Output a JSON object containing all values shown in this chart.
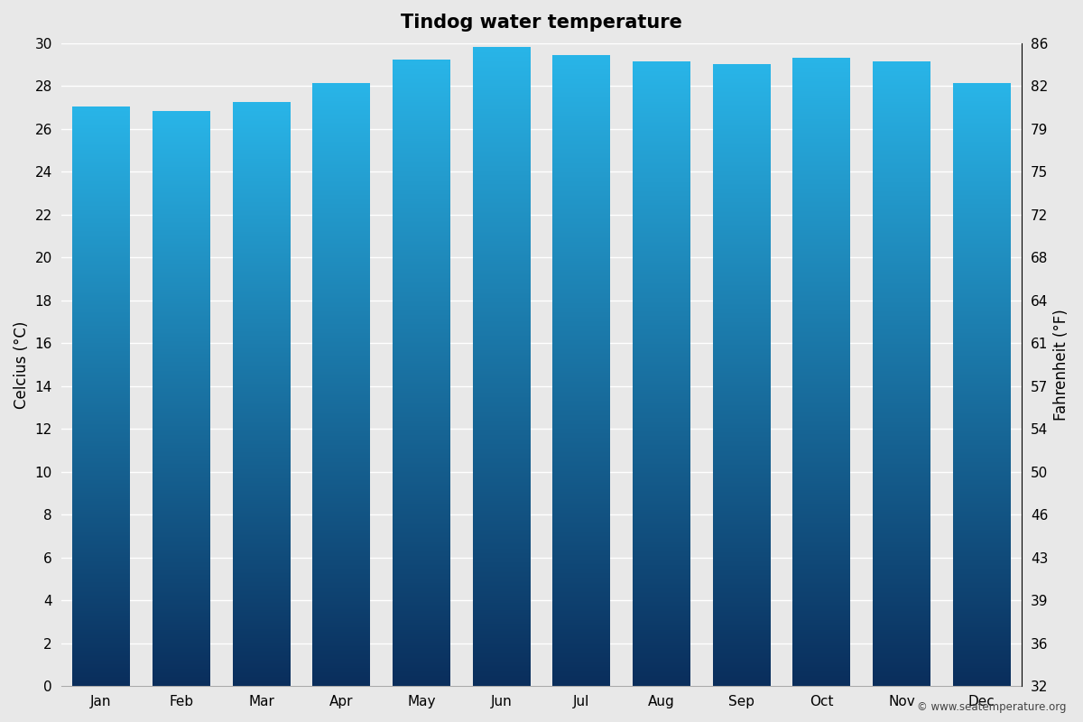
{
  "title": "Tindog water temperature",
  "months": [
    "Jan",
    "Feb",
    "Mar",
    "Apr",
    "May",
    "Jun",
    "Jul",
    "Aug",
    "Sep",
    "Oct",
    "Nov",
    "Dec"
  ],
  "celsius_values": [
    27.0,
    26.8,
    27.2,
    28.1,
    29.2,
    29.8,
    29.4,
    29.1,
    29.0,
    29.3,
    29.1,
    28.1
  ],
  "ylabel_left": "Celcius (°C)",
  "ylabel_right": "Fahrenheit (°F)",
  "ylim_celsius": [
    0,
    30
  ],
  "yticks_celsius": [
    0,
    2,
    4,
    6,
    8,
    10,
    12,
    14,
    16,
    18,
    20,
    22,
    24,
    26,
    28,
    30
  ],
  "yticks_fahrenheit": [
    32,
    36,
    39,
    43,
    46,
    50,
    54,
    57,
    61,
    64,
    68,
    72,
    75,
    79,
    82,
    86
  ],
  "background_color": "#e8e8e8",
  "bar_color_top": "#29b5e8",
  "bar_color_bottom": "#0a2e5c",
  "title_fontsize": 15,
  "axis_fontsize": 12,
  "tick_fontsize": 11,
  "watermark": "© www.seatemperature.org",
  "bar_width": 0.72
}
